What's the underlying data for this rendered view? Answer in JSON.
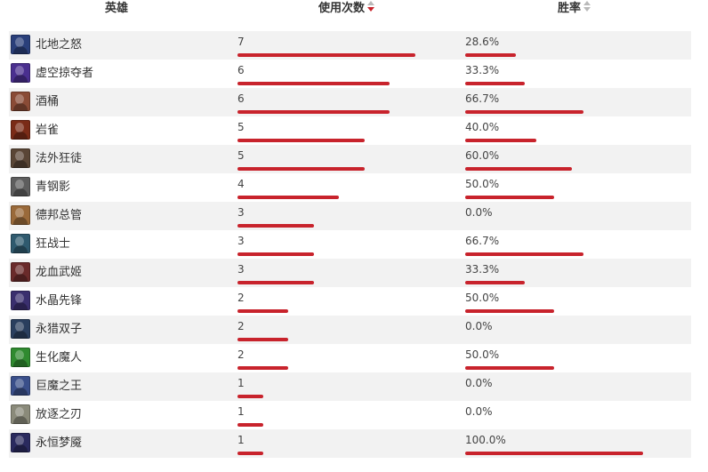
{
  "header": {
    "hero_label": "英雄",
    "uses_label": "使用次数",
    "winrate_label": "胜率",
    "uses_sort": "descending",
    "winrate_sort": "none"
  },
  "colors": {
    "bar": "#c8232c",
    "stripe": "#f2f2f2"
  },
  "chart_data": {
    "type": "table",
    "columns": [
      "英雄",
      "使用次数",
      "胜率"
    ],
    "rows": [
      {
        "hero": "北地之怒",
        "uses": "7",
        "uses_value": 7,
        "winrate": "28.6%",
        "winrate_value": 28.6,
        "icon": "champion-portrait-icon",
        "tone": "#2a3f7a"
      },
      {
        "hero": "虚空掠夺者",
        "uses": "6",
        "uses_value": 6,
        "winrate": "33.3%",
        "winrate_value": 33.3,
        "icon": "champion-portrait-icon",
        "tone": "#4a2f8f"
      },
      {
        "hero": "酒桶",
        "uses": "6",
        "uses_value": 6,
        "winrate": "66.7%",
        "winrate_value": 66.7,
        "icon": "champion-portrait-icon",
        "tone": "#8a4b36"
      },
      {
        "hero": "岩雀",
        "uses": "5",
        "uses_value": 5,
        "winrate": "40.0%",
        "winrate_value": 40.0,
        "icon": "champion-portrait-icon",
        "tone": "#7a2b17"
      },
      {
        "hero": "法外狂徒",
        "uses": "5",
        "uses_value": 5,
        "winrate": "60.0%",
        "winrate_value": 60.0,
        "icon": "champion-portrait-icon",
        "tone": "#5a4636"
      },
      {
        "hero": "青钢影",
        "uses": "4",
        "uses_value": 4,
        "winrate": "50.0%",
        "winrate_value": 50.0,
        "icon": "champion-portrait-icon",
        "tone": "#5e5e5e"
      },
      {
        "hero": "德邦总管",
        "uses": "3",
        "uses_value": 3,
        "winrate": "0.0%",
        "winrate_value": 0.0,
        "icon": "champion-portrait-icon",
        "tone": "#9a6a3a"
      },
      {
        "hero": "狂战士",
        "uses": "3",
        "uses_value": 3,
        "winrate": "66.7%",
        "winrate_value": 66.7,
        "icon": "champion-portrait-icon",
        "tone": "#2f5a6e"
      },
      {
        "hero": "龙血武姬",
        "uses": "3",
        "uses_value": 3,
        "winrate": "33.3%",
        "winrate_value": 33.3,
        "icon": "champion-portrait-icon",
        "tone": "#6a2a2a"
      },
      {
        "hero": "水晶先锋",
        "uses": "2",
        "uses_value": 2,
        "winrate": "50.0%",
        "winrate_value": 50.0,
        "icon": "champion-portrait-icon",
        "tone": "#3a2f6e"
      },
      {
        "hero": "永猎双子",
        "uses": "2",
        "uses_value": 2,
        "winrate": "0.0%",
        "winrate_value": 0.0,
        "icon": "champion-portrait-icon",
        "tone": "#2a3f5e"
      },
      {
        "hero": "生化魔人",
        "uses": "2",
        "uses_value": 2,
        "winrate": "50.0%",
        "winrate_value": 50.0,
        "icon": "champion-portrait-icon",
        "tone": "#2f8a2f"
      },
      {
        "hero": "巨魔之王",
        "uses": "1",
        "uses_value": 1,
        "winrate": "0.0%",
        "winrate_value": 0.0,
        "icon": "champion-portrait-icon",
        "tone": "#3a4f8a"
      },
      {
        "hero": "放逐之刃",
        "uses": "1",
        "uses_value": 1,
        "winrate": "0.0%",
        "winrate_value": 0.0,
        "icon": "champion-portrait-icon",
        "tone": "#8a8a7a"
      },
      {
        "hero": "永恒梦魇",
        "uses": "1",
        "uses_value": 1,
        "winrate": "100.0%",
        "winrate_value": 100.0,
        "icon": "champion-portrait-icon",
        "tone": "#2a2a5e"
      }
    ]
  }
}
